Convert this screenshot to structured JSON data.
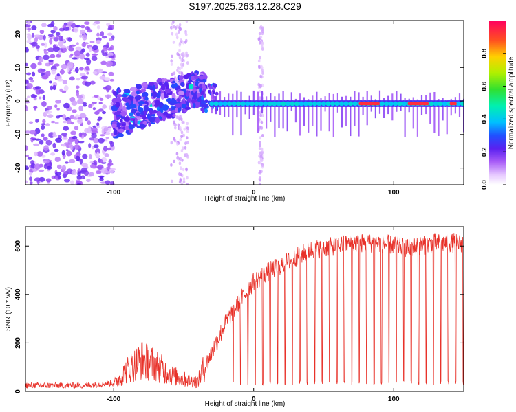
{
  "title": "S197.2025.263.12.28.C29",
  "colors": {
    "snr_line": "#e8322a",
    "frame": "#000000",
    "background": "#ffffff"
  },
  "chart_data": [
    {
      "type": "heatmap",
      "title": "S197.2025.263.12.28.C29",
      "xlabel": "Height of straight line (km)",
      "ylabel": "Frequency (Hz)",
      "xlim": [
        -163,
        150
      ],
      "ylim": [
        -25,
        24
      ],
      "xticks": [
        -100,
        0,
        100
      ],
      "xtick_labels": [
        "-100",
        "0",
        "100"
      ],
      "yticks": [
        -20,
        -10,
        0,
        10,
        20
      ],
      "ytick_labels": [
        "-20",
        "-10",
        "0",
        "10",
        "20"
      ],
      "colorbar": {
        "label": "Normalized spectral amplitude",
        "range": [
          0,
          1
        ],
        "ticks": [
          0,
          0.2,
          0.4,
          0.6,
          0.8
        ],
        "tick_labels": [
          "0.0",
          "0.2",
          "0.4",
          "0.6",
          "0.8"
        ]
      },
      "features": {
        "noise_region_km": [
          -163,
          -100
        ],
        "unstable_region_km": [
          -100,
          -35
        ],
        "stable_tone_from_km": -30,
        "stable_tone_frequency_hz": -0.8,
        "peak_amplitude_regions_km": [
          [
            75,
            90
          ],
          [
            110,
            125
          ],
          [
            140,
            145
          ]
        ]
      }
    },
    {
      "type": "line",
      "xlabel": "Height of straight line (km)",
      "ylabel": "SNR (10 * v/v)",
      "xlim": [
        -163,
        150
      ],
      "ylim": [
        0,
        680
      ],
      "xticks": [
        -100,
        0,
        100
      ],
      "xtick_labels": [
        "-100",
        "0",
        "100"
      ],
      "yticks": [
        0,
        200,
        400,
        600
      ],
      "ytick_labels": [
        "0",
        "200",
        "400",
        "600"
      ],
      "series": [
        {
          "name": "SNR",
          "x": [
            -163,
            -140,
            -120,
            -100,
            -90,
            -80,
            -70,
            -60,
            -50,
            -40,
            -30,
            -20,
            -10,
            0,
            10,
            20,
            30,
            40,
            50,
            60,
            70,
            80,
            90,
            100,
            110,
            120,
            130,
            140,
            150
          ],
          "values": [
            20,
            20,
            20,
            30,
            90,
            130,
            110,
            70,
            50,
            40,
            170,
            290,
            380,
            460,
            500,
            530,
            560,
            590,
            600,
            610,
            620,
            620,
            620,
            610,
            600,
            610,
            620,
            620,
            620
          ],
          "dropout_floor": 25
        }
      ]
    }
  ]
}
